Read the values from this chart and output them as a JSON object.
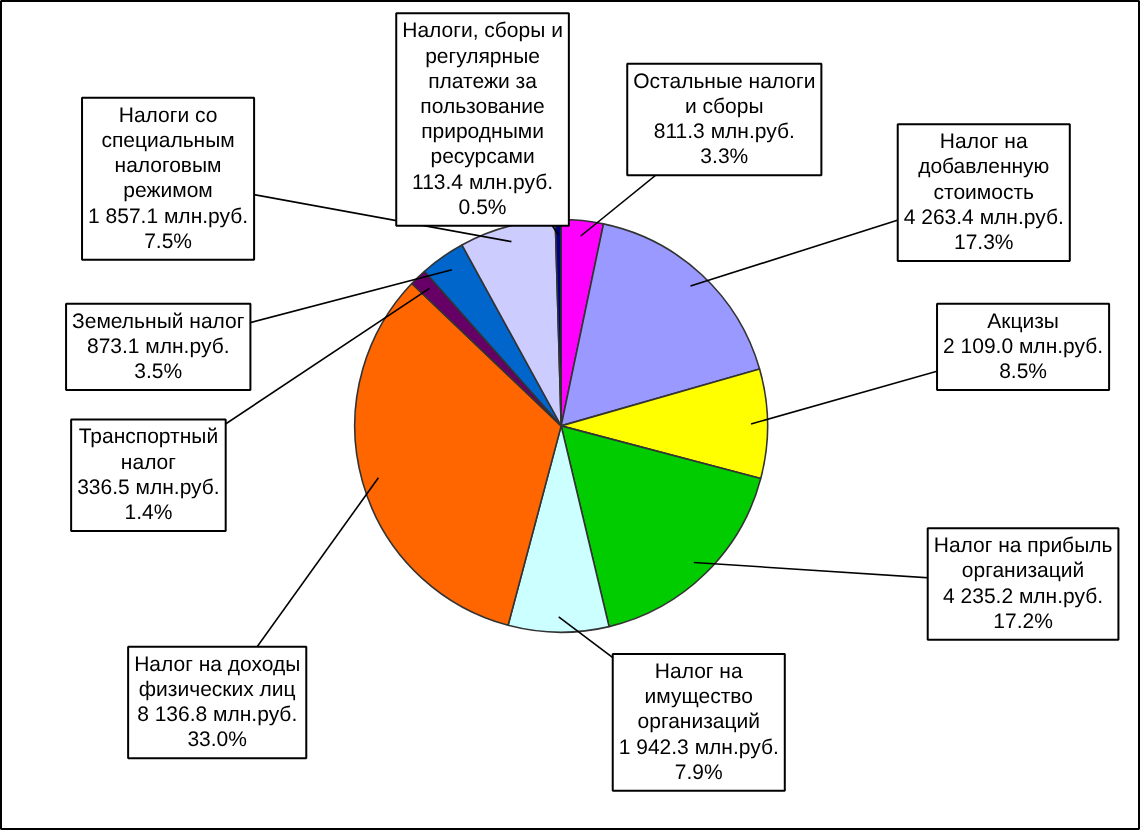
{
  "chart_data": {
    "type": "pie",
    "categories": [
      "Остальные налоги и сборы",
      "Налог на добавленную стоимость",
      "Акцизы",
      "Налог на прибыль организаций",
      "Налог на имущество организаций",
      "Налог на доходы физических лиц",
      "Транспортный налог",
      "Земельный налог",
      "Налоги со специальным налоговым режимом",
      "Налоги, сборы и регулярные платежи за пользование природными ресурсами"
    ],
    "values": [
      811.3,
      4263.4,
      2109.0,
      4235.2,
      1942.3,
      8136.8,
      336.5,
      873.1,
      1857.1,
      113.4
    ],
    "colors": [
      "#ff00ff",
      "#9999ff",
      "#ffff00",
      "#00cc00",
      "#ccffff",
      "#ff6600",
      "#660066",
      "#0066cc",
      "#ccccff",
      "#000080"
    ],
    "value_labels": [
      "811.3 млн.руб. 3.3%",
      "4 263.4 млн.руб. 17.3%",
      "2 109.0 млн.руб. 8.5%",
      "4 235.2 млн.руб. 17.2%",
      "1 942.3 млн.руб. 7.9%",
      "8 136.8 млн.руб. 33.0%",
      "336.5 млн.руб. 1.4%",
      "873.1 млн.руб. 3.5%",
      "1 857.1 млн.руб. 7.5%",
      "113.4 млн.руб. 0.5%"
    ],
    "grid": false
  }
}
